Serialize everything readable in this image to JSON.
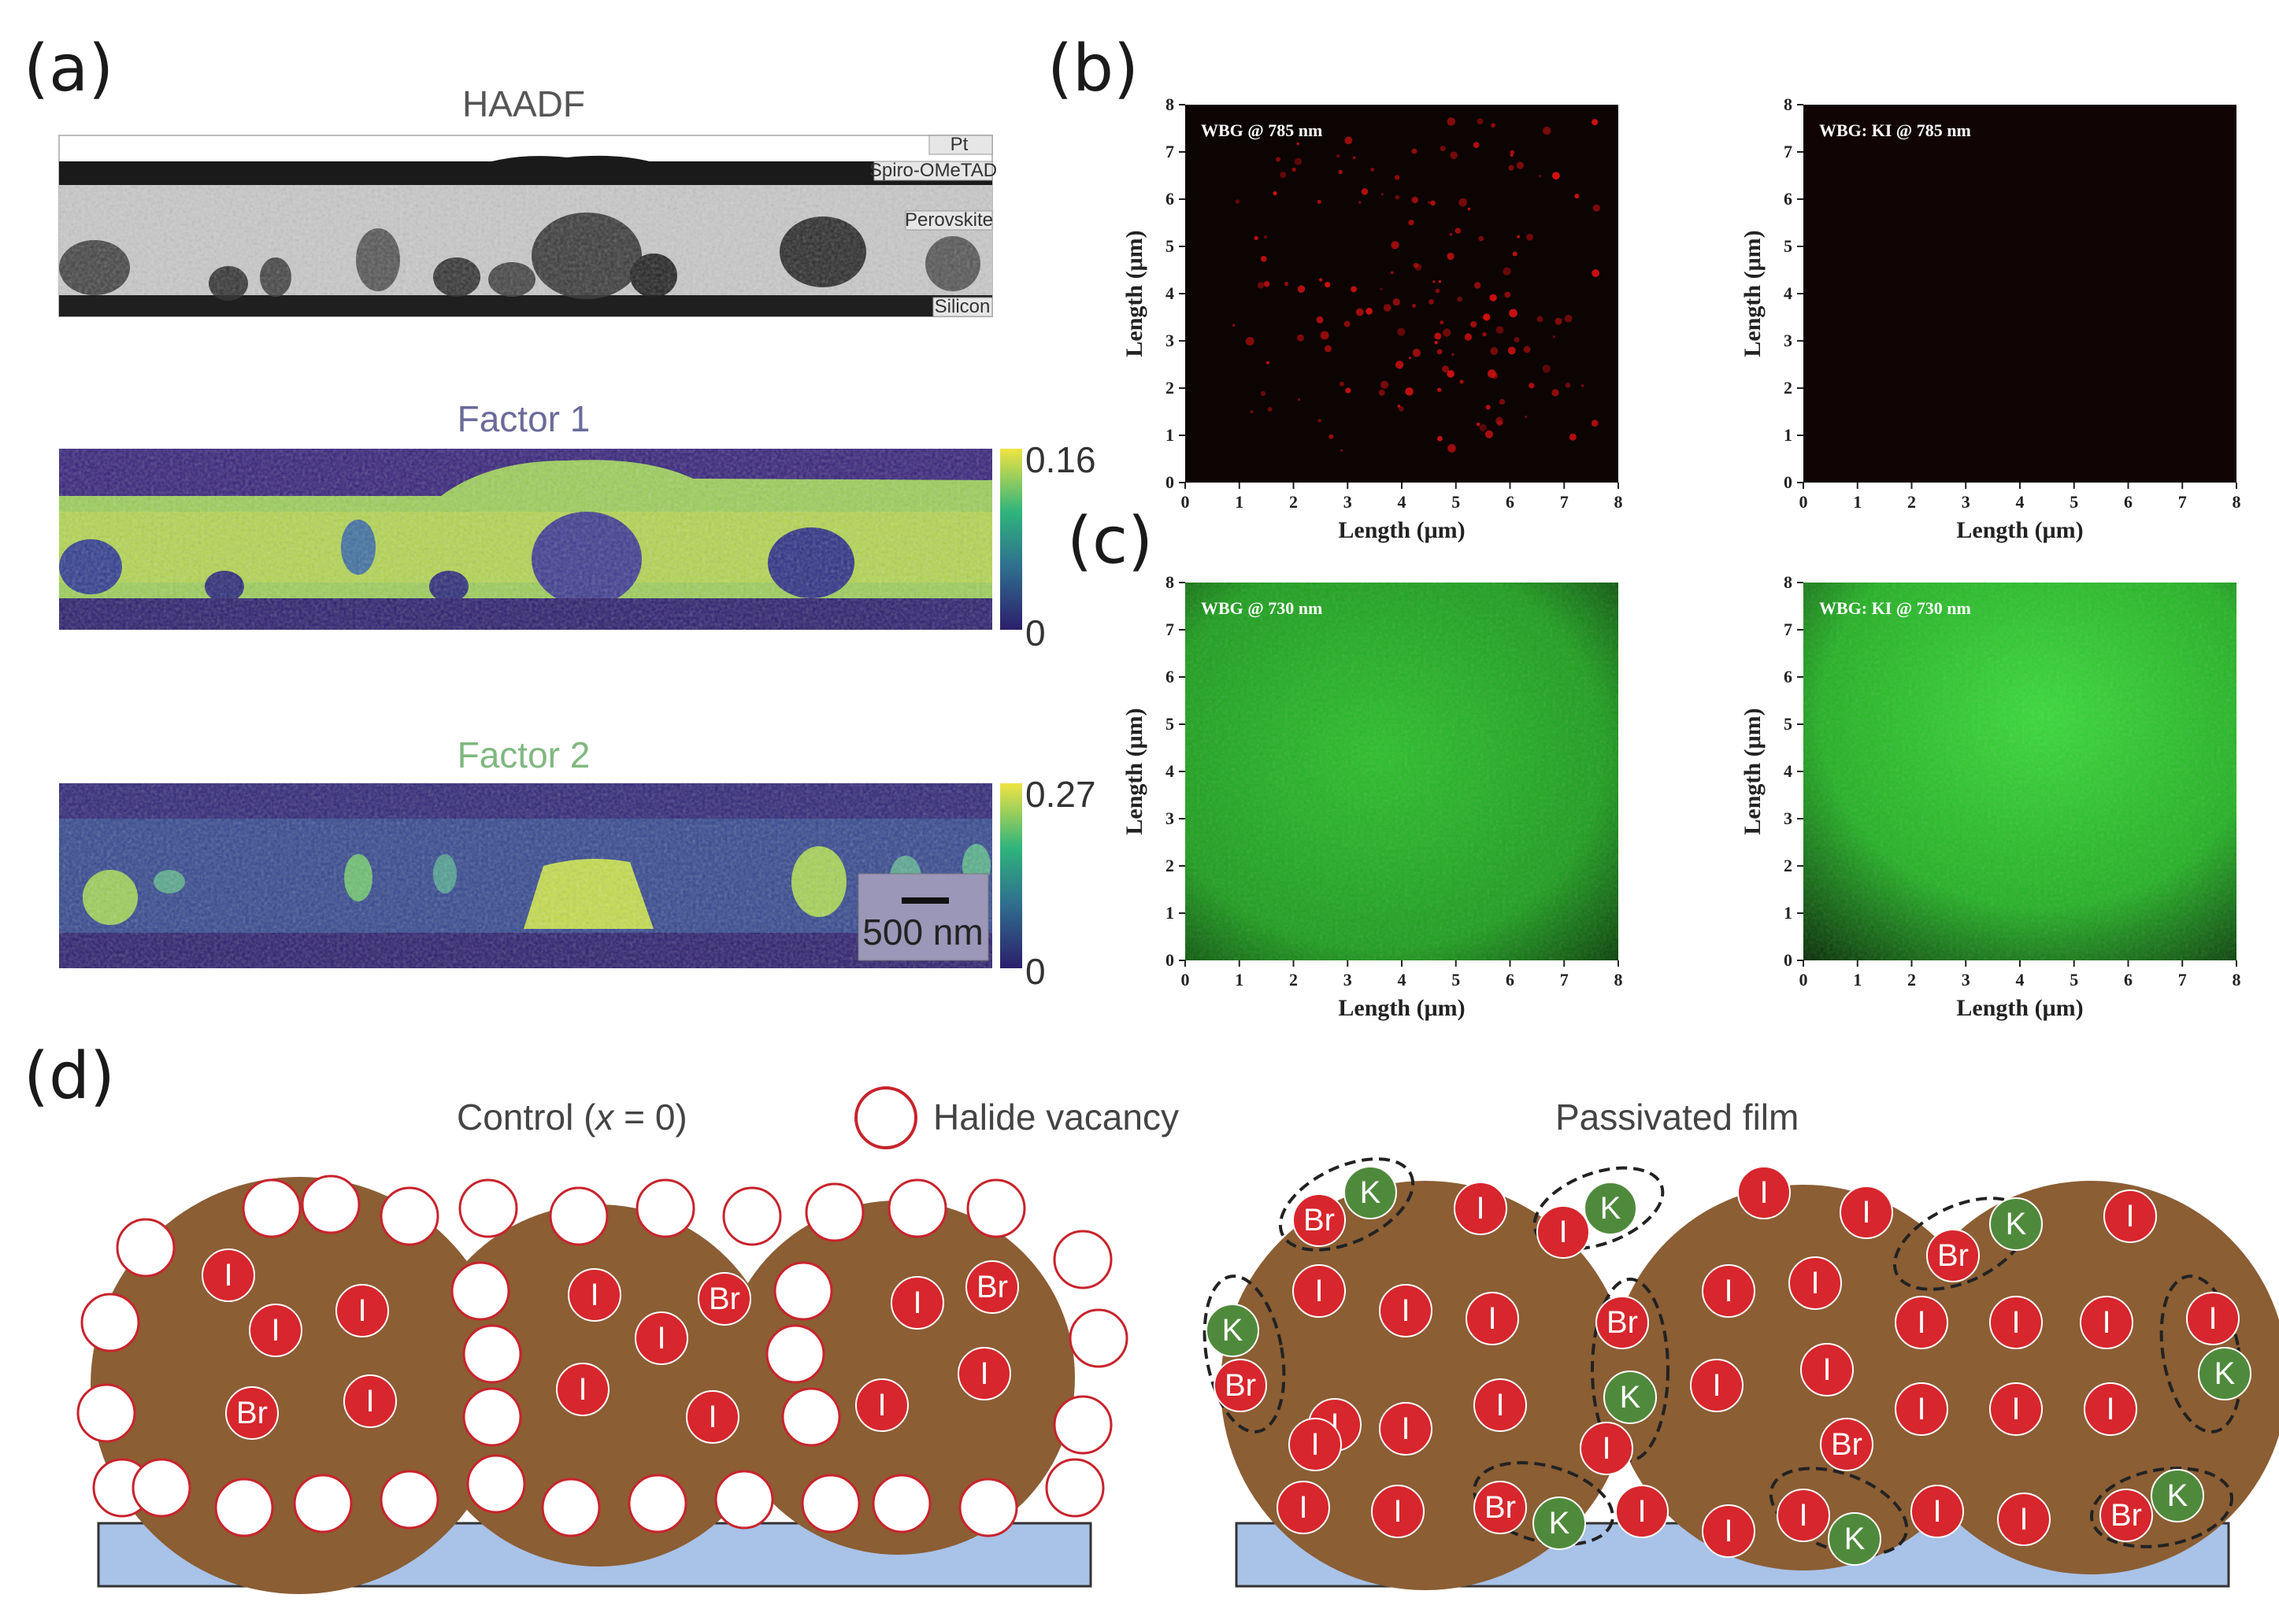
{
  "panels": {
    "a": {
      "label": "(a)",
      "haadf_title": "HAADF",
      "layers": [
        "Pt",
        "Spiro-OMeTAD",
        "Perovskite",
        "Silicon"
      ],
      "factor1": {
        "title": "Factor 1",
        "colorbar_max": "0.16",
        "colorbar_min": "0"
      },
      "factor2": {
        "title": "Factor 2",
        "colorbar_max": "0.27",
        "colorbar_min": "0"
      },
      "scalebar": "500 nm",
      "title_colors": {
        "haadf": "#555555",
        "factor1": "#6b6b9a",
        "factor2": "#7fb87f"
      }
    },
    "b": {
      "label": "(b)",
      "maps": [
        {
          "title": "WBG @ 785 nm",
          "color": "#d01010"
        },
        {
          "title": "WBG: KI @ 785 nm",
          "color": "#3a0808"
        }
      ]
    },
    "c": {
      "label": "(c)",
      "maps": [
        {
          "title": "WBG @ 730 nm",
          "color": "#2bb02b"
        },
        {
          "title": "WBG: KI @ 730 nm",
          "color": "#33cc33"
        }
      ]
    },
    "axes": {
      "xlabel": "Length (μm)",
      "ylabel": "Length (μm)",
      "ticks": [
        "0",
        "1",
        "2",
        "3",
        "4",
        "5",
        "6",
        "7",
        "8"
      ]
    },
    "d": {
      "label": "(d)",
      "control_title_prefix": "Control (",
      "control_title_var": "x",
      "control_title_suffix": " = 0)",
      "legend_vacancy": "Halide vacancy",
      "passivated_title": "Passivated film",
      "ions": {
        "iodide": "I",
        "bromide": "Br",
        "potassium": "K"
      },
      "colors": {
        "grain": "#8b5e34",
        "halide": "#d7262d",
        "potassium": "#4f8a3c",
        "substrate": "#a9c2e8"
      }
    }
  }
}
